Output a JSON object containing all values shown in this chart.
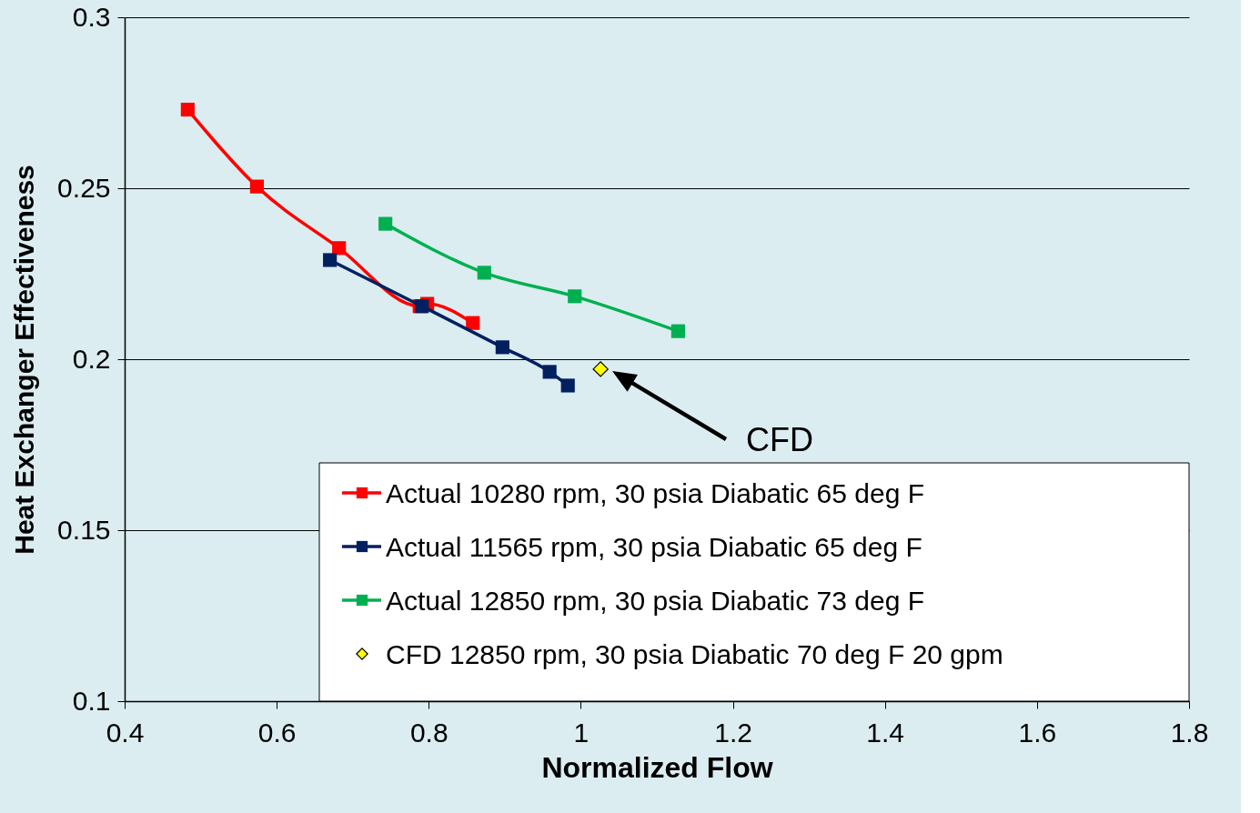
{
  "chart_data": {
    "type": "line",
    "xlabel": "Normalized Flow",
    "ylabel": "Heat Exchanger Effectiveness",
    "xlim": [
      0.4,
      1.8
    ],
    "xticks": [
      0.4,
      0.6,
      0.8,
      1,
      1.2,
      1.4,
      1.6,
      1.8
    ],
    "ylim": [
      0.1,
      0.3
    ],
    "yticks": [
      0.1,
      0.15,
      0.2,
      0.25,
      0.3
    ],
    "grid": "y",
    "legend": "bottom right",
    "marker": "square",
    "line_style": "solid",
    "series": [
      {
        "name": "Actual 10280 rpm, 30 psia Diabatic 65 deg F",
        "color": "#ff0000",
        "x": [
          0.483,
          0.574,
          0.682,
          0.788,
          0.798,
          0.858
        ],
        "values": [
          0.273,
          0.2505,
          0.2325,
          0.2155,
          0.2162,
          0.2106
        ]
      },
      {
        "name": "Actual 11565 rpm, 30 psia Diabatic 65 deg F",
        "color": "#002060",
        "x": [
          0.67,
          0.791,
          0.897,
          0.959,
          0.983
        ],
        "values": [
          0.229,
          0.2155,
          0.2035,
          0.1963,
          0.1923
        ]
      },
      {
        "name": "Actual 12850 rpm, 30 psia Diabatic 73 deg F",
        "color": "#00b050",
        "x": [
          0.743,
          0.873,
          0.992,
          1.128
        ],
        "values": [
          0.2396,
          0.2253,
          0.2184,
          0.2082
        ]
      },
      {
        "name": "CFD 12850 rpm, 30 psia Diabatic 70 deg F 20 gpm",
        "color": "#ffff00",
        "type": "scatter",
        "marker": "diamond",
        "x": [
          1.026
        ],
        "values": [
          0.1971
        ]
      }
    ],
    "annotations": [
      "CFD"
    ]
  }
}
